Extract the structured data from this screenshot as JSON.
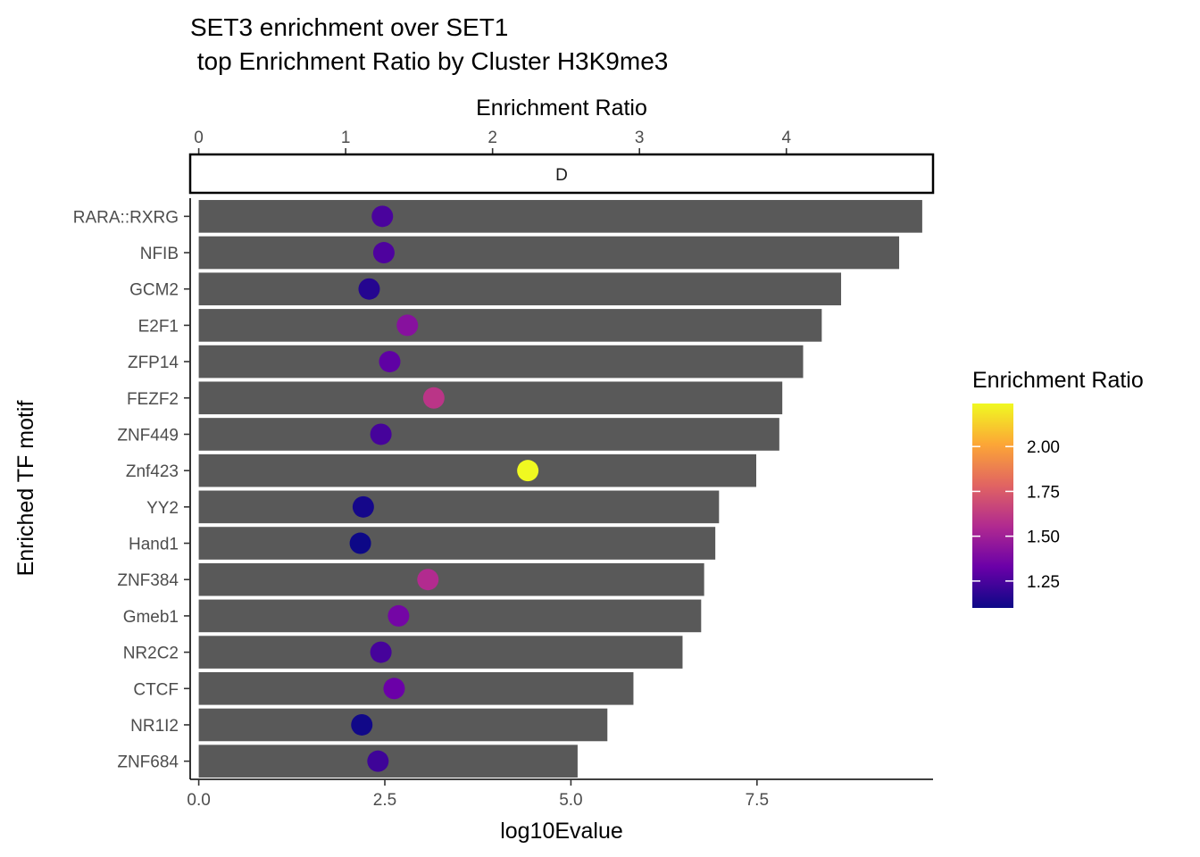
{
  "chart_data": {
    "type": "bar",
    "title_line1": "SET3 enrichment over SET1",
    "title_line2": " top Enrichment Ratio by Cluster H3K9me3",
    "xlabel": "log10Evalue",
    "ylabel": "Enriched TF motif",
    "top_axis_label": "Enrichment Ratio",
    "facet_label": "D",
    "xlim": [
      0,
      9.75
    ],
    "x_ticks": [
      0,
      2.5,
      5,
      7.5
    ],
    "x_tick_labels": [
      "0.0",
      "2.5",
      "5.0",
      "7.5"
    ],
    "top_axis_range": [
      0,
      4.94
    ],
    "top_ticks": [
      0,
      1,
      2,
      3,
      4
    ],
    "top_tick_labels": [
      "0",
      "1",
      "2",
      "3",
      "4"
    ],
    "categories": [
      "RARA::RXRG",
      "NFIB",
      "GCM2",
      "E2F1",
      "ZFP14",
      "FEZF2",
      "ZNF449",
      "Znf423",
      "YY2",
      "Hand1",
      "ZNF384",
      "Gmeb1",
      "NR2C2",
      "CTCF",
      "NR1I2",
      "ZNF684"
    ],
    "bar_values": [
      9.72,
      9.41,
      8.63,
      8.37,
      8.12,
      7.84,
      7.8,
      7.49,
      6.99,
      6.94,
      6.79,
      6.75,
      6.5,
      5.84,
      5.49,
      5.09
    ],
    "enrichment_ratio": [
      1.25,
      1.26,
      1.16,
      1.42,
      1.3,
      1.6,
      1.24,
      2.24,
      1.12,
      1.1,
      1.56,
      1.36,
      1.24,
      1.33,
      1.11,
      1.22
    ],
    "bar_color": "#595959",
    "legend": {
      "title": "Enrichment Ratio",
      "min": 1.1,
      "max": 2.24,
      "ticks": [
        1.25,
        1.5,
        1.75,
        2.0
      ],
      "tick_labels": [
        "1.25",
        "1.50",
        "1.75",
        "2.00"
      ],
      "palette": [
        "#0d0887",
        "#6a00a8",
        "#b12a90",
        "#e16462",
        "#fca636",
        "#f0f921"
      ]
    }
  }
}
